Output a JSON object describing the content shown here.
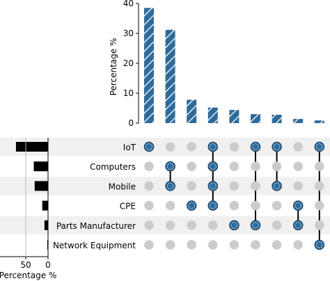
{
  "chart_data": {
    "type": "bar",
    "subtype": "upset",
    "sets": [
      "IoT",
      "Computers",
      "Mobile",
      "CPE",
      "Parts Manufacturer",
      "Network Equipment"
    ],
    "intersection_bars": {
      "ylabel": "Percentage %",
      "ylim": [
        0,
        40
      ],
      "yticks": [
        0,
        10,
        20,
        30,
        40
      ],
      "values": [
        38.5,
        31.2,
        7.8,
        5.2,
        4.4,
        3.0,
        2.8,
        1.4,
        0.9
      ],
      "color": "#2f6b9a",
      "hatch": "diagonal-white"
    },
    "intersections": [
      [
        "IoT"
      ],
      [
        "Computers",
        "Mobile"
      ],
      [
        "CPE"
      ],
      [
        "IoT",
        "Computers",
        "Mobile",
        "CPE"
      ],
      [
        "Parts Manufacturer"
      ],
      [
        "IoT",
        "Parts Manufacturer"
      ],
      [
        "IoT",
        "Mobile"
      ],
      [
        "CPE",
        "Parts Manufacturer"
      ],
      [
        "IoT",
        "Network Equipment"
      ]
    ],
    "set_size_bars": {
      "xlabel": "Percentage %",
      "xticks": [
        50,
        0
      ],
      "values": [
        72,
        32,
        30,
        13,
        8,
        1
      ],
      "color": "#000000"
    },
    "matrix": {
      "active_color": "#2f6b9a",
      "inactive_color": "#cccccc",
      "connector_color": "#000000",
      "row_shading": "#f0f0f0"
    }
  }
}
